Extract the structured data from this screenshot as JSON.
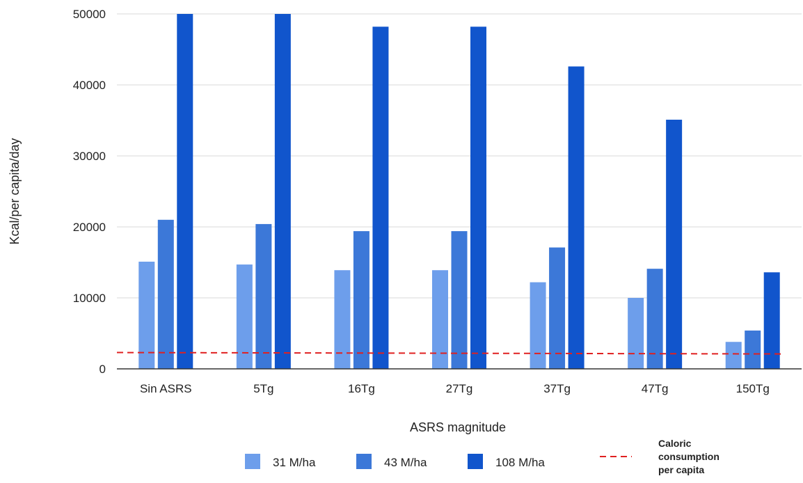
{
  "chart_data": {
    "type": "bar",
    "title": "",
    "xlabel": "ASRS magnitude",
    "ylabel": "Kcal/per capita/day",
    "ylim": [
      0,
      50000
    ],
    "yticks": [
      0,
      10000,
      20000,
      30000,
      40000,
      50000
    ],
    "grid": true,
    "legend_position": "bottom",
    "categories": [
      "Sin ASRS",
      "5Tg",
      "16Tg",
      "27Tg",
      "37Tg",
      "47Tg",
      "150Tg"
    ],
    "series": [
      {
        "name": "31 M/ha",
        "color": "#6d9eeb",
        "values": [
          15100,
          14700,
          13900,
          13900,
          12200,
          10000,
          3800
        ]
      },
      {
        "name": "43 M/ha",
        "color": "#3c78d8",
        "values": [
          21000,
          20400,
          19400,
          19400,
          17100,
          14100,
          5400
        ]
      },
      {
        "name": "108 M/ha",
        "color": "#1155cc",
        "values": [
          50000,
          50000,
          48200,
          48200,
          42600,
          35100,
          13600
        ]
      }
    ],
    "reference_line": {
      "name_lines": [
        "Caloric",
        "consumption",
        "per capita"
      ],
      "color": "#e02020",
      "style": "dashed",
      "start_value": 2300,
      "end_value": 2100
    }
  }
}
